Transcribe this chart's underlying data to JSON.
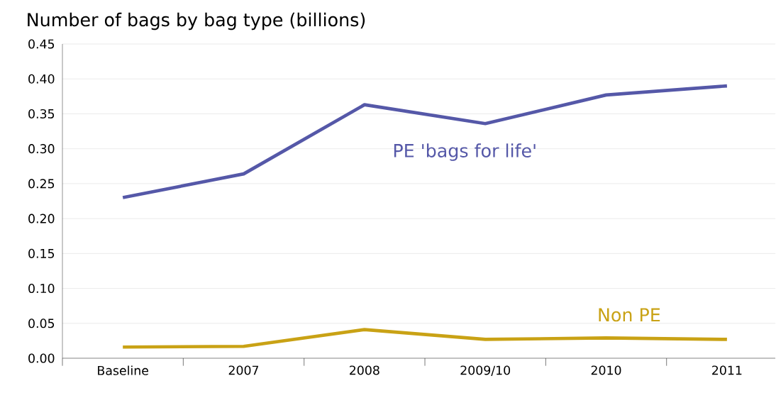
{
  "chart_data": {
    "type": "line",
    "title": "Number of bags by bag type (billions)",
    "categories": [
      "Baseline",
      "2007",
      "2008",
      "2009/10",
      "2010",
      "2011"
    ],
    "series": [
      {
        "name": "PE 'bags for life'",
        "color": "#5558a8",
        "values": [
          0.23,
          0.264,
          0.363,
          0.336,
          0.377,
          0.39
        ]
      },
      {
        "name": "Non PE",
        "color": "#c9a215",
        "values": [
          0.016,
          0.017,
          0.041,
          0.027,
          0.029,
          0.027
        ]
      }
    ],
    "ylim": [
      0,
      0.45
    ],
    "yticks": [
      {
        "value": 0,
        "label": "0.00"
      },
      {
        "value": 0.05,
        "label": "0.05"
      },
      {
        "value": 0.1,
        "label": "0.10"
      },
      {
        "value": 0.15,
        "label": "0.15"
      },
      {
        "value": 0.2,
        "label": "0.20"
      },
      {
        "value": 0.25,
        "label": "0.25"
      },
      {
        "value": 0.3,
        "label": "0.30"
      },
      {
        "value": 0.35,
        "label": "0.35"
      },
      {
        "value": 0.4,
        "label": "0.40"
      },
      {
        "value": 0.45,
        "label": "0.45"
      }
    ],
    "grid": "y",
    "legend": false,
    "marker": "none",
    "line_style": "solid"
  }
}
